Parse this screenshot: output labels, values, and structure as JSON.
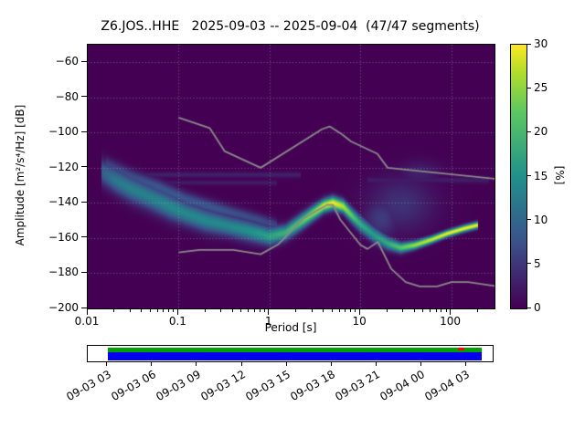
{
  "title": "Z6.JOS..HHE   2025-09-03 -- 2025-09-04  (47/47 segments)",
  "axes": {
    "x_label": "Period [s]",
    "y_label": "Amplitude [m²/s⁴/Hz] [dB]",
    "x_ticks": [
      0.01,
      0.1,
      1,
      10,
      100
    ],
    "x_tick_labels": [
      "0.01",
      "0.1",
      "1",
      "10",
      "100"
    ],
    "y_ticks": [
      -60,
      -80,
      -100,
      -120,
      -140,
      -160,
      -180,
      -200
    ],
    "y_tick_labels": [
      "−60",
      "−80",
      "−100",
      "−120",
      "−140",
      "−160",
      "−180",
      "−200"
    ]
  },
  "colorbar": {
    "label": "[%]",
    "range": [
      0,
      30
    ],
    "ticks": [
      0,
      5,
      10,
      15,
      20,
      25,
      30
    ]
  },
  "chart_data": {
    "type": "heatmap",
    "title": "Z6.JOS..HHE   2025-09-03 -- 2025-09-04  (47/47 segments)",
    "xlabel": "Period [s]",
    "ylabel": "Amplitude [m²/s⁴/Hz] [dB]",
    "x_scale": "log",
    "x_range": [
      0.01,
      300
    ],
    "y_range": [
      -200,
      -50
    ],
    "percent_range": [
      0,
      30
    ],
    "colormap": "viridis",
    "colormap_stops": [
      [
        0,
        68,
        1,
        84
      ],
      [
        0.25,
        59,
        82,
        139
      ],
      [
        0.5,
        33,
        145,
        140
      ],
      [
        0.75,
        94,
        201,
        98
      ],
      [
        0.9,
        181,
        222,
        43
      ],
      [
        1,
        253,
        231,
        37
      ]
    ],
    "ridge_format": [
      "period_s",
      "amplitude_db",
      "percent",
      "sigma_db"
    ],
    "mode_ridge": [
      [
        0.014,
        -122,
        9,
        5
      ],
      [
        0.02,
        -127,
        12,
        5
      ],
      [
        0.03,
        -132,
        13,
        5
      ],
      [
        0.05,
        -137,
        13,
        5
      ],
      [
        0.08,
        -142,
        14,
        5
      ],
      [
        0.12,
        -146,
        14,
        4.5
      ],
      [
        0.2,
        -150,
        14,
        4.5
      ],
      [
        0.35,
        -153,
        14,
        4
      ],
      [
        0.6,
        -156,
        15,
        4
      ],
      [
        1.0,
        -159,
        17,
        3.5
      ],
      [
        1.5,
        -157,
        19,
        3
      ],
      [
        2.2,
        -151,
        22,
        3
      ],
      [
        3.0,
        -146,
        25,
        2.8
      ],
      [
        4.0,
        -141.5,
        29,
        2.5
      ],
      [
        5.0,
        -140,
        30,
        2.5
      ],
      [
        6.5,
        -142,
        27,
        2.5
      ],
      [
        8.0,
        -147,
        22,
        2.8
      ],
      [
        10,
        -152,
        18,
        3
      ],
      [
        14,
        -158,
        16,
        3
      ],
      [
        20,
        -163,
        18,
        2.5
      ],
      [
        28,
        -165.5,
        22,
        2
      ],
      [
        40,
        -164,
        26,
        1.6
      ],
      [
        60,
        -161,
        28,
        1.4
      ],
      [
        90,
        -157.5,
        30,
        1.3
      ],
      [
        140,
        -154.5,
        30,
        1.3
      ],
      [
        200,
        -152.5,
        30,
        1.3
      ]
    ],
    "secondary_ridge": [
      [
        0.016,
        -118,
        6,
        3
      ],
      [
        0.03,
        -125,
        7,
        3
      ],
      [
        0.06,
        -131,
        8,
        3
      ],
      [
        0.12,
        -138,
        8,
        3
      ],
      [
        0.25,
        -143,
        8,
        2.8
      ],
      [
        0.5,
        -147,
        7,
        2.5
      ],
      [
        0.8,
        -150,
        7,
        2.5
      ],
      [
        1.2,
        -153,
        6,
        2.5
      ]
    ],
    "line_artifacts": [
      {
        "db": -124,
        "period_range": [
          0.02,
          2.2
        ],
        "percent": 3,
        "sigma_db": 1.1
      },
      {
        "db": -128.5,
        "period_range": [
          0.02,
          1.2
        ],
        "percent": 2.4,
        "sigma_db": 1.0
      },
      {
        "db": -127,
        "period_range": [
          12,
          260
        ],
        "percent": 2.6,
        "sigma_db": 1.2
      }
    ],
    "diffuse_patches": [
      {
        "period": 28,
        "db": -141,
        "sigma_logp": 0.26,
        "sigma_db": 11,
        "percent": 4.5
      },
      {
        "period": 45,
        "db": -123,
        "sigma_logp": 0.17,
        "sigma_db": 5,
        "percent": 3
      },
      {
        "period": 17,
        "db": -149,
        "sigma_logp": 0.14,
        "sigma_db": 8,
        "percent": 5.5
      }
    ],
    "noise_models": {
      "color": "#8a8a8a",
      "nhnm": [
        [
          0.1,
          -91.5
        ],
        [
          0.22,
          -97.4
        ],
        [
          0.32,
          -110.5
        ],
        [
          0.8,
          -120.0
        ],
        [
          3.8,
          -98.0
        ],
        [
          4.6,
          -96.5
        ],
        [
          6.3,
          -101.0
        ],
        [
          7.9,
          -105.0
        ],
        [
          15.4,
          -112.0
        ],
        [
          20.0,
          -120.0
        ],
        [
          354.8,
          -126.6
        ]
      ],
      "nlnm": [
        [
          0.1,
          -168.1
        ],
        [
          0.17,
          -166.7
        ],
        [
          0.4,
          -166.7
        ],
        [
          0.8,
          -169.2
        ],
        [
          1.24,
          -163.7
        ],
        [
          2.4,
          -148.6
        ],
        [
          4.3,
          -141.1
        ],
        [
          5.0,
          -141.1
        ],
        [
          6.0,
          -149.4
        ],
        [
          10.0,
          -163.8
        ],
        [
          12.0,
          -166.2
        ],
        [
          15.6,
          -162.1
        ],
        [
          21.9,
          -177.5
        ],
        [
          31.6,
          -185.0
        ],
        [
          45.0,
          -187.5
        ],
        [
          70.0,
          -187.5
        ],
        [
          101.0,
          -185.0
        ],
        [
          154.0,
          -185.0
        ],
        [
          328.0,
          -187.5
        ]
      ]
    },
    "background_color": "#440154"
  },
  "timeline": {
    "tick_labels": [
      "09-03 03",
      "09-03 06",
      "09-03 09",
      "09-03 12",
      "09-03 15",
      "09-03 18",
      "09-03 21",
      "09-04 00",
      "09-04 03"
    ],
    "first_tick_frac": 0.049,
    "tick_step_frac": 0.1103,
    "coverage": {
      "start_frac": 0.049,
      "end_frac": 0.973
    },
    "marker_frac": 0.915,
    "marker_width_frac": 0.014,
    "colors": {
      "top": "#00a000",
      "bottom": "#0000ee",
      "marker": "#ff0000"
    }
  }
}
